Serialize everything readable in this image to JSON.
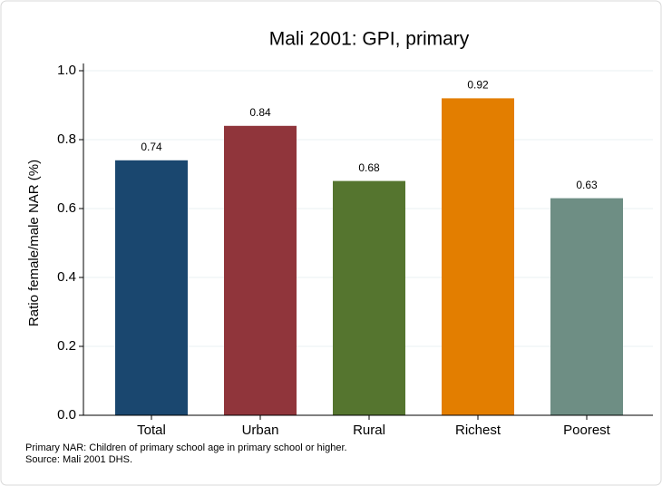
{
  "chart_data": {
    "type": "bar",
    "title": "Mali 2001: GPI, primary",
    "y_label": "Ratio female/male NAR (%)",
    "categories": [
      "Total",
      "Urban",
      "Rural",
      "Richest",
      "Poorest"
    ],
    "values": [
      0.74,
      0.84,
      0.68,
      0.92,
      0.63
    ],
    "colors": [
      "#1a476f",
      "#90353b",
      "#55752f",
      "#e37e00",
      "#6e8e84"
    ],
    "ylim": [
      0,
      1.0
    ],
    "yticks": [
      {
        "value": 0,
        "label": "0.0"
      },
      0.2,
      0.4,
      0.6,
      0.8,
      {
        "value": 1.0,
        "label": "1.0"
      }
    ],
    "grid": true,
    "notes": [
      "Primary NAR: Children of primary school age in primary school or higher.",
      "Source: Mali 2001 DHS."
    ]
  }
}
